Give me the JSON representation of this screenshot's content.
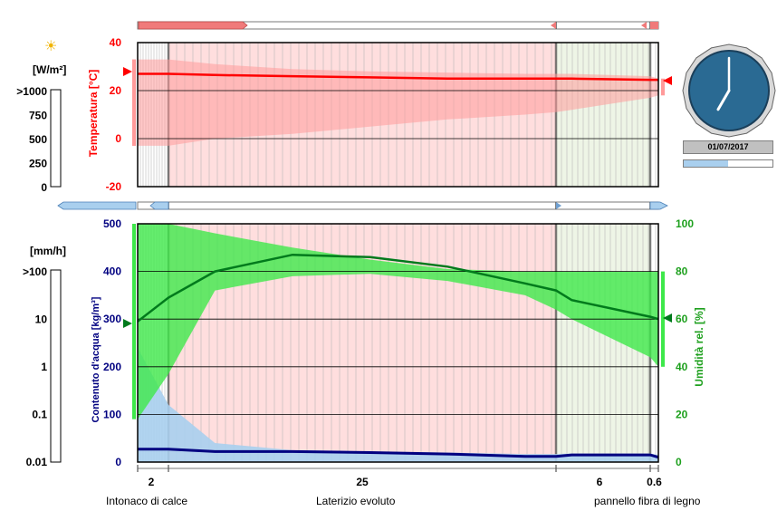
{
  "colors": {
    "temperature": "#ff0000",
    "temperature_band": "#ff9a9a",
    "water_content": "#000080",
    "water_band": "#a9cfee",
    "humidity": "#007a1c",
    "humidity_band": "#3ee84a",
    "layer_lime": "#ffffff",
    "layer_brick": "#ffdede",
    "layer_wood": "#eef5e6",
    "clock_face": "#2a6a93"
  },
  "radiation": {
    "unit": "[W/m²]",
    "ticks": [
      ">1000",
      "750",
      "500",
      "250",
      "0"
    ],
    "icon": "sun-icon"
  },
  "rain": {
    "unit": "[mm/h]",
    "ticks": [
      ">100",
      "10",
      "1",
      "0.1",
      "0.01"
    ]
  },
  "clock": {
    "date": "01/07/2017",
    "hour": 7,
    "minute": 0,
    "year_progress": 0.5
  },
  "layers": [
    {
      "name": "Intonaco di calce",
      "thickness": "2"
    },
    {
      "name": "Laterizio evoluto",
      "thickness": "25"
    },
    {
      "name": "pannello fibra di legno",
      "thickness": "6"
    },
    {
      "name": "",
      "thickness": "0.6"
    }
  ],
  "chart_data": [
    {
      "type": "line",
      "ylabel": "Temperatura [°C]",
      "ylim": [
        -20,
        40
      ],
      "yticks": [
        "40",
        "20",
        "0",
        "-20"
      ],
      "grid": true,
      "x_depth": [
        0,
        2,
        5,
        10,
        15,
        20,
        25,
        27,
        28,
        33,
        33.6
      ],
      "series": [
        {
          "role": "current",
          "values": [
            27,
            27,
            26.5,
            26,
            25.5,
            25,
            25,
            25,
            25,
            24.5,
            24.5
          ]
        },
        {
          "role": "max",
          "values": [
            33,
            33,
            31,
            29,
            28,
            27.5,
            27,
            27,
            27,
            26,
            25
          ]
        },
        {
          "role": "min",
          "values": [
            -3,
            -3,
            0,
            2,
            5,
            8,
            10,
            11,
            12,
            17,
            18
          ]
        }
      ]
    },
    {
      "type": "line",
      "ylabel": "Contenuto d'acqua [kg/m³]",
      "y2label": "Umidità rel. [%]",
      "ylim": [
        0,
        500
      ],
      "yticks": [
        "500",
        "400",
        "300",
        "200",
        "100",
        "0"
      ],
      "y2lim": [
        0,
        100
      ],
      "y2ticks": [
        "100",
        "80",
        "60",
        "40",
        "20",
        "0"
      ],
      "grid": true,
      "x_depth": [
        0,
        2,
        5,
        10,
        15,
        20,
        25,
        27,
        28,
        33,
        33.6
      ],
      "series": [
        {
          "name": "Umidità rel. [%]",
          "role": "current",
          "axis": "right",
          "values": [
            59,
            69,
            80,
            87,
            86,
            82,
            75,
            72,
            68,
            61,
            60
          ]
        },
        {
          "role": "rh_max",
          "axis": "right",
          "values": [
            100,
            100,
            96,
            90,
            85,
            81,
            80,
            80,
            80,
            80,
            80
          ]
        },
        {
          "role": "rh_min",
          "axis": "right",
          "values": [
            18,
            37,
            72,
            78,
            79,
            76,
            70,
            64,
            60,
            44,
            40
          ]
        },
        {
          "name": "Contenuto d'acqua [kg/m³]",
          "role": "current",
          "axis": "left",
          "values": [
            27,
            27,
            22,
            22,
            20,
            17,
            12,
            12,
            15,
            15,
            10
          ]
        },
        {
          "role": "w_max",
          "axis": "left",
          "values": [
            240,
            120,
            40,
            25,
            22,
            20,
            17,
            17,
            18,
            18,
            15
          ]
        }
      ]
    }
  ]
}
